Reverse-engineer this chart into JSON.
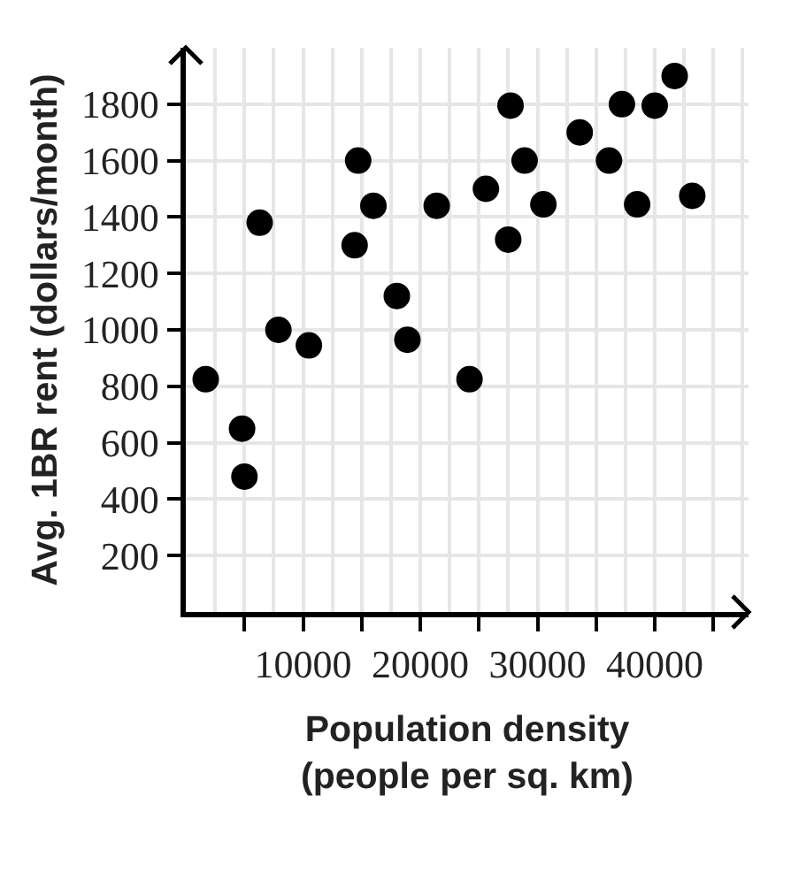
{
  "chart_data": {
    "type": "scatter",
    "xlabel": "Population density\n(people per sq. km)",
    "ylabel": "Avg. 1BR rent (dollars/month)",
    "x": [
      1700,
      4800,
      5000,
      6300,
      7900,
      10500,
      14400,
      14700,
      16000,
      18000,
      18900,
      21400,
      24200,
      25600,
      27500,
      27700,
      28900,
      30500,
      33600,
      36100,
      37200,
      38500,
      40000,
      41700,
      43200
    ],
    "values": [
      825,
      650,
      480,
      1380,
      1000,
      945,
      1300,
      1600,
      1440,
      1120,
      965,
      1440,
      825,
      1500,
      1320,
      1795,
      1600,
      1445,
      1700,
      1600,
      1800,
      1445,
      1795,
      1900,
      1475
    ],
    "color": "#000000",
    "marker": "circle",
    "xlim": [
      0,
      48000
    ],
    "ylim": [
      0,
      2000
    ],
    "xticks": [
      {
        "value": 5000,
        "label": null
      },
      10000,
      {
        "value": 15000,
        "label": null
      },
      20000,
      {
        "value": 25000,
        "label": null
      },
      30000,
      {
        "value": 35000,
        "label": null
      },
      40000,
      {
        "value": 45000,
        "label": null
      }
    ],
    "yticks": [
      200,
      400,
      600,
      800,
      1000,
      1200,
      1400,
      1600,
      1800
    ],
    "grid": true
  }
}
